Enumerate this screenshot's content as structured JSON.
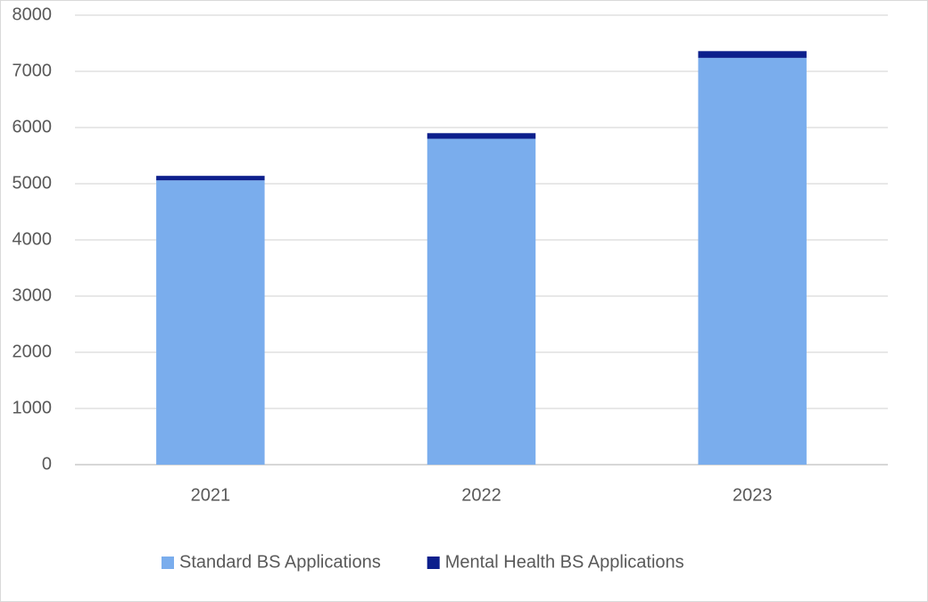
{
  "chart_data": {
    "type": "stacked_bar",
    "categories": [
      "2021",
      "2022",
      "2023"
    ],
    "series": [
      {
        "name": "Standard BS Applications",
        "color": "#7aaded",
        "values": [
          5060,
          5800,
          7240
        ]
      },
      {
        "name": "Mental Health BS Applications",
        "color": "#0c1f8c",
        "values": [
          80,
          100,
          120
        ]
      }
    ],
    "ylim": [
      0,
      8000
    ],
    "yticks": [
      0,
      1000,
      2000,
      3000,
      4000,
      5000,
      6000,
      7000,
      8000
    ],
    "grid": true,
    "legend": "bottom"
  }
}
